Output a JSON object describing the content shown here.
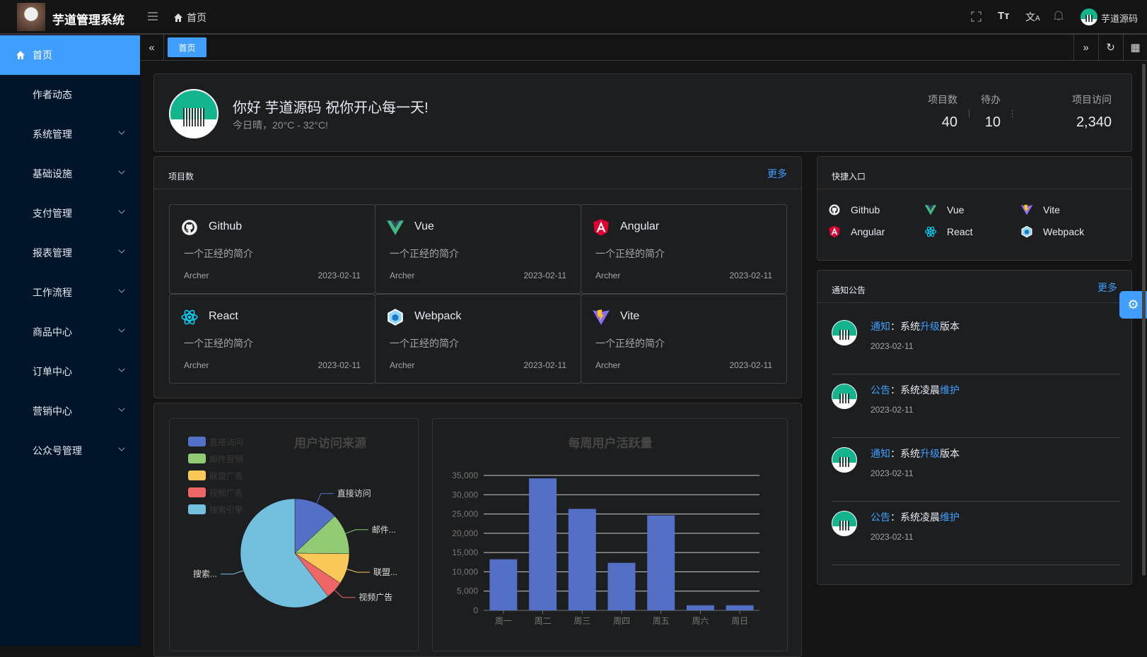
{
  "header": {
    "app_title": "芋道管理系统",
    "breadcrumb": "首页",
    "user_name": "芋道源码",
    "icons": [
      "menu-fold-icon",
      "home-icon",
      "fullscreen-icon",
      "font-size-icon",
      "translate-icon",
      "bell-icon"
    ]
  },
  "sidebar": {
    "items": [
      {
        "label": "首页",
        "active": true,
        "icon": "home-icon"
      },
      {
        "label": "作者动态"
      },
      {
        "label": "系统管理",
        "expandable": true
      },
      {
        "label": "基础设施",
        "expandable": true
      },
      {
        "label": "支付管理",
        "expandable": true
      },
      {
        "label": "报表管理",
        "expandable": true
      },
      {
        "label": "工作流程",
        "expandable": true
      },
      {
        "label": "商品中心",
        "expandable": true
      },
      {
        "label": "订单中心",
        "expandable": true
      },
      {
        "label": "营销中心",
        "expandable": true
      },
      {
        "label": "公众号管理",
        "expandable": true
      }
    ]
  },
  "tabs": {
    "items": [
      {
        "label": "首页",
        "active": true
      }
    ]
  },
  "welcome": {
    "greeting": "你好 芋道源码 祝你开心每一天!",
    "weather": "今日晴，20°C - 32°C!",
    "stats": [
      {
        "label": "项目数",
        "value": "40"
      },
      {
        "label": "待办",
        "value": "10"
      },
      {
        "label": "项目访问",
        "value": "2,340"
      }
    ]
  },
  "projects": {
    "title": "项目数",
    "more": "更多",
    "items": [
      {
        "name": "Github",
        "desc": "一个正经的简介",
        "author": "Archer",
        "date": "2023-02-11",
        "icon": "github-icon"
      },
      {
        "name": "Vue",
        "desc": "一个正经的简介",
        "author": "Archer",
        "date": "2023-02-11",
        "icon": "vue-icon"
      },
      {
        "name": "Angular",
        "desc": "一个正经的简介",
        "author": "Archer",
        "date": "2023-02-11",
        "icon": "angular-icon"
      },
      {
        "name": "React",
        "desc": "一个正经的简介",
        "author": "Archer",
        "date": "2023-02-11",
        "icon": "react-icon"
      },
      {
        "name": "Webpack",
        "desc": "一个正经的简介",
        "author": "Archer",
        "date": "2023-02-11",
        "icon": "webpack-icon"
      },
      {
        "name": "Vite",
        "desc": "一个正经的简介",
        "author": "Archer",
        "date": "2023-02-11",
        "icon": "vite-icon"
      }
    ]
  },
  "shortcuts": {
    "title": "快捷入口",
    "items": [
      {
        "name": "Github"
      },
      {
        "name": "Vue"
      },
      {
        "name": "Vite"
      },
      {
        "name": "Angular"
      },
      {
        "name": "React"
      },
      {
        "name": "Webpack"
      }
    ]
  },
  "notices": {
    "title": "通知公告",
    "more": "更多",
    "items": [
      {
        "type": "通知",
        "sep": "：",
        "parts": [
          "系统",
          "升级",
          "版本"
        ],
        "date": "2023-02-11"
      },
      {
        "type": "公告",
        "sep": "：",
        "parts": [
          "系统凌晨",
          "维护",
          ""
        ],
        "date": "2023-02-11"
      },
      {
        "type": "通知",
        "sep": "：",
        "parts": [
          "系统",
          "升级",
          "版本"
        ],
        "date": "2023-02-11"
      },
      {
        "type": "公告",
        "sep": "：",
        "parts": [
          "系统凌晨",
          "维护",
          ""
        ],
        "date": "2023-02-11"
      }
    ]
  },
  "colors": {
    "accent": "#409eff",
    "sidebar_bg": "#001529",
    "card_bg": "#1d1e1f"
  },
  "chart_data": [
    {
      "type": "pie",
      "title": "用户访问来源",
      "legend_position": "top-left",
      "categories": [
        "直接访问",
        "邮件营销",
        "联盟广告",
        "视频广告",
        "搜索引擎"
      ],
      "slice_labels": [
        "直接访问",
        "邮件...",
        "联盟...",
        "视频广告",
        "搜索..."
      ],
      "values": [
        335,
        310,
        234,
        135,
        1548
      ],
      "colors": [
        "#5470c6",
        "#91cc75",
        "#fac858",
        "#ee6666",
        "#73c0de"
      ]
    },
    {
      "type": "bar",
      "title": "每周用户活跃量",
      "categories": [
        "周一",
        "周二",
        "周三",
        "周四",
        "周五",
        "周六",
        "周日"
      ],
      "values": [
        13253,
        34235,
        26321,
        12340,
        24643,
        1322,
        1324
      ],
      "yticks": [
        "0",
        "5,000",
        "10,000",
        "15,000",
        "20,000",
        "25,000",
        "30,000",
        "35,000"
      ],
      "ylim": [
        0,
        35000
      ],
      "grid": true,
      "color": "#5470c6"
    }
  ]
}
